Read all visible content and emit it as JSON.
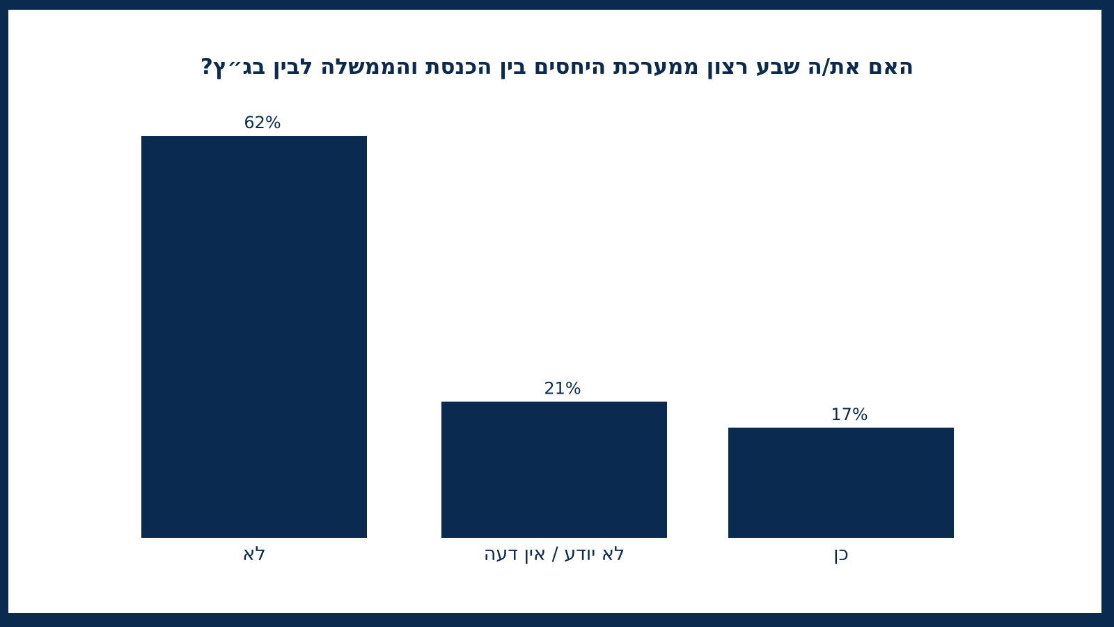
{
  "chart_data": {
    "type": "bar",
    "title": "האם את/ה שבע רצון ממערכת היחסים בין הכנסת והממשלה לבין בג״ץ?",
    "categories": [
      "לא",
      "לא יודע / אין דעה",
      "כן"
    ],
    "values": [
      62,
      21,
      17
    ],
    "value_labels": [
      "62%",
      "21%",
      "17%"
    ],
    "unit": "%",
    "xlabel": "",
    "ylabel": "",
    "ylim": [
      0,
      62
    ],
    "grid": false,
    "legend": "none",
    "colors": {
      "bar": "#0b2a50",
      "text": "#0b2a50",
      "border": "#0b2a50",
      "background": "#ffffff"
    }
  }
}
